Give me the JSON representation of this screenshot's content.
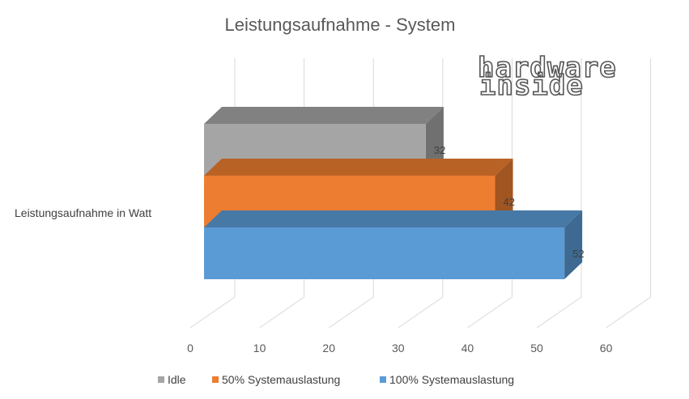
{
  "chart_data": {
    "type": "bar",
    "orientation": "horizontal",
    "style": "3d",
    "title": "Leistungsaufnahme - System",
    "categories": [
      "Leistungsaufnahme in Watt"
    ],
    "series": [
      {
        "name": "Idle",
        "values": [
          32
        ],
        "color": "#a5a5a5"
      },
      {
        "name": "50% Systemauslastung",
        "values": [
          42
        ],
        "color": "#ed7d31"
      },
      {
        "name": "100% Systemauslastung",
        "values": [
          52
        ],
        "color": "#5b9bd5"
      }
    ],
    "xlim": [
      0,
      60
    ],
    "xticks": [
      0,
      10,
      20,
      30,
      40,
      50,
      60
    ],
    "grid": true,
    "legend_position": "bottom"
  },
  "watermark": {
    "line1": "hardware",
    "line2": "inside"
  }
}
